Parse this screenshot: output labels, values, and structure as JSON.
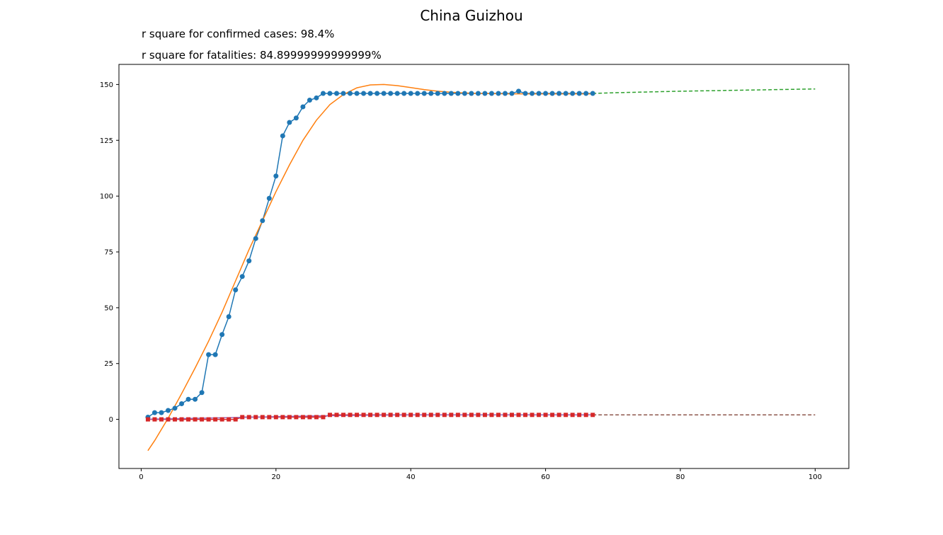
{
  "chart_data": {
    "type": "line",
    "title": "China Guizhou",
    "subtitles": [
      "r square for confirmed cases: 98.4%",
      "r square for fatalities: 84.89999999999999%"
    ],
    "xlabel": "",
    "ylabel": "",
    "xlim": [
      -3.3,
      105
    ],
    "ylim": [
      -22,
      159
    ],
    "xticks": [
      0,
      20,
      40,
      60,
      80,
      100
    ],
    "yticks": [
      0,
      25,
      50,
      75,
      100,
      125,
      150
    ],
    "grid": false,
    "series": [
      {
        "role": "confirmed-observed",
        "color": "#1f77b4",
        "marker": "circle",
        "x": [
          1,
          2,
          3,
          4,
          5,
          6,
          7,
          8,
          9,
          10,
          11,
          12,
          13,
          14,
          15,
          16,
          17,
          18,
          19,
          20,
          21,
          22,
          23,
          24,
          25,
          26,
          27,
          28,
          29,
          30,
          31,
          32,
          33,
          34,
          35,
          36,
          37,
          38,
          39,
          40,
          41,
          42,
          43,
          44,
          45,
          46,
          47,
          48,
          49,
          50,
          51,
          52,
          53,
          54,
          55,
          56,
          57,
          58,
          59,
          60,
          61,
          62,
          63,
          64,
          65,
          66,
          67
        ],
        "y": [
          1,
          3,
          3,
          4,
          5,
          7,
          9,
          9,
          12,
          29,
          29,
          38,
          46,
          58,
          64,
          71,
          81,
          89,
          99,
          109,
          127,
          133,
          135,
          140,
          143,
          144,
          146,
          146,
          146,
          146,
          146,
          146,
          146,
          146,
          146,
          146,
          146,
          146,
          146,
          146,
          146,
          146,
          146,
          146,
          146,
          146,
          146,
          146,
          146,
          146,
          146,
          146,
          146,
          146,
          146,
          147,
          146,
          146,
          146,
          146,
          146,
          146,
          146,
          146,
          146,
          146,
          146
        ]
      },
      {
        "role": "confirmed-fit",
        "color": "#ff7f0e",
        "x": [
          1,
          2,
          3,
          4,
          5,
          6,
          8,
          10,
          12,
          14,
          16,
          18,
          20,
          22,
          24,
          26,
          28,
          30,
          32,
          34,
          36,
          38,
          40,
          42,
          44,
          46,
          48,
          50,
          55,
          60,
          67
        ],
        "y": [
          -14,
          -9.5,
          -4.5,
          0.5,
          6,
          11.5,
          23,
          35,
          48,
          62,
          76,
          89,
          102,
          114,
          125,
          134,
          141,
          145.5,
          148.5,
          149.8,
          150,
          149.5,
          148.6,
          147.7,
          147,
          146.5,
          146.2,
          146,
          145.8,
          145.8,
          145.8
        ]
      },
      {
        "role": "confirmed-projection",
        "color": "#2ca02c",
        "dashed": true,
        "x": [
          67,
          70,
          80,
          90,
          100
        ],
        "y": [
          146,
          146.3,
          147,
          147.5,
          148
        ]
      },
      {
        "role": "fatalities-observed",
        "color": "#d62728",
        "marker": "square",
        "x": [
          1,
          2,
          3,
          4,
          5,
          6,
          7,
          8,
          9,
          10,
          11,
          12,
          13,
          14,
          15,
          16,
          17,
          18,
          19,
          20,
          21,
          22,
          23,
          24,
          25,
          26,
          27,
          28,
          29,
          30,
          31,
          32,
          33,
          34,
          35,
          36,
          37,
          38,
          39,
          40,
          41,
          42,
          43,
          44,
          45,
          46,
          47,
          48,
          49,
          50,
          51,
          52,
          53,
          54,
          55,
          56,
          57,
          58,
          59,
          60,
          61,
          62,
          63,
          64,
          65,
          66,
          67
        ],
        "y": [
          0,
          0,
          0,
          0,
          0,
          0,
          0,
          0,
          0,
          0,
          0,
          0,
          0,
          0,
          1,
          1,
          1,
          1,
          1,
          1,
          1,
          1,
          1,
          1,
          1,
          1,
          1,
          2,
          2,
          2,
          2,
          2,
          2,
          2,
          2,
          2,
          2,
          2,
          2,
          2,
          2,
          2,
          2,
          2,
          2,
          2,
          2,
          2,
          2,
          2,
          2,
          2,
          2,
          2,
          2,
          2,
          2,
          2,
          2,
          2,
          2,
          2,
          2,
          2,
          2,
          2,
          2
        ]
      },
      {
        "role": "fatalities-fit",
        "color": "#9467bd",
        "x": [
          1,
          5,
          10,
          15,
          20,
          25,
          30,
          35,
          40,
          50,
          60,
          67
        ],
        "y": [
          0.1,
          0.3,
          0.6,
          0.9,
          1.2,
          1.5,
          1.75,
          1.9,
          2,
          2,
          2,
          2
        ]
      },
      {
        "role": "fatalities-projection",
        "color": "#8c564b",
        "dashed": true,
        "x": [
          67,
          80,
          100
        ],
        "y": [
          2,
          2,
          2
        ]
      }
    ]
  }
}
